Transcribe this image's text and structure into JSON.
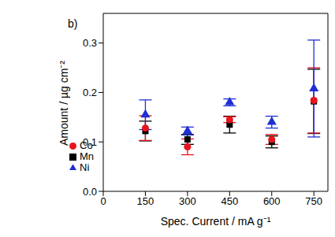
{
  "chart_data": {
    "type": "scatter",
    "annotation": "b)",
    "x_label": "Spec. Current / mA g⁻¹",
    "y_label": "Amount / µg cm⁻²",
    "xlim": [
      0,
      800
    ],
    "xticks": [
      0,
      150,
      300,
      450,
      600,
      750
    ],
    "ylim": [
      0,
      0.36
    ],
    "yticks": [
      {
        "value": 0,
        "label": "0.0"
      },
      {
        "value": 0.1,
        "label": "0.1"
      },
      {
        "value": 0.2,
        "label": "0.2"
      },
      {
        "value": 0.3,
        "label": "0.3"
      }
    ],
    "legend": "lower left",
    "series": [
      {
        "name": "Mn",
        "color": "#000000",
        "marker": "square",
        "x": [
          150,
          300,
          450,
          600,
          750
        ],
        "values": [
          0.122,
          0.105,
          0.135,
          0.1,
          0.182
        ],
        "errors": [
          0.02,
          0.01,
          0.017,
          0.012,
          0.065
        ]
      },
      {
        "name": "Co",
        "color": "#e8141c",
        "marker": "circle",
        "x": [
          150,
          300,
          450,
          600,
          750
        ],
        "values": [
          0.128,
          0.09,
          0.145,
          0.105,
          0.184
        ],
        "errors": [
          0.025,
          0.016,
          0.006,
          0.01,
          0.066
        ]
      },
      {
        "name": "Ni",
        "color": "#1f2fd6",
        "marker": "triangle",
        "x": [
          150,
          300,
          450,
          600,
          750
        ],
        "values": [
          0.155,
          0.122,
          0.18,
          0.14,
          0.208
        ],
        "errors": [
          0.03,
          0.008,
          0.007,
          0.012,
          0.098
        ]
      }
    ]
  }
}
